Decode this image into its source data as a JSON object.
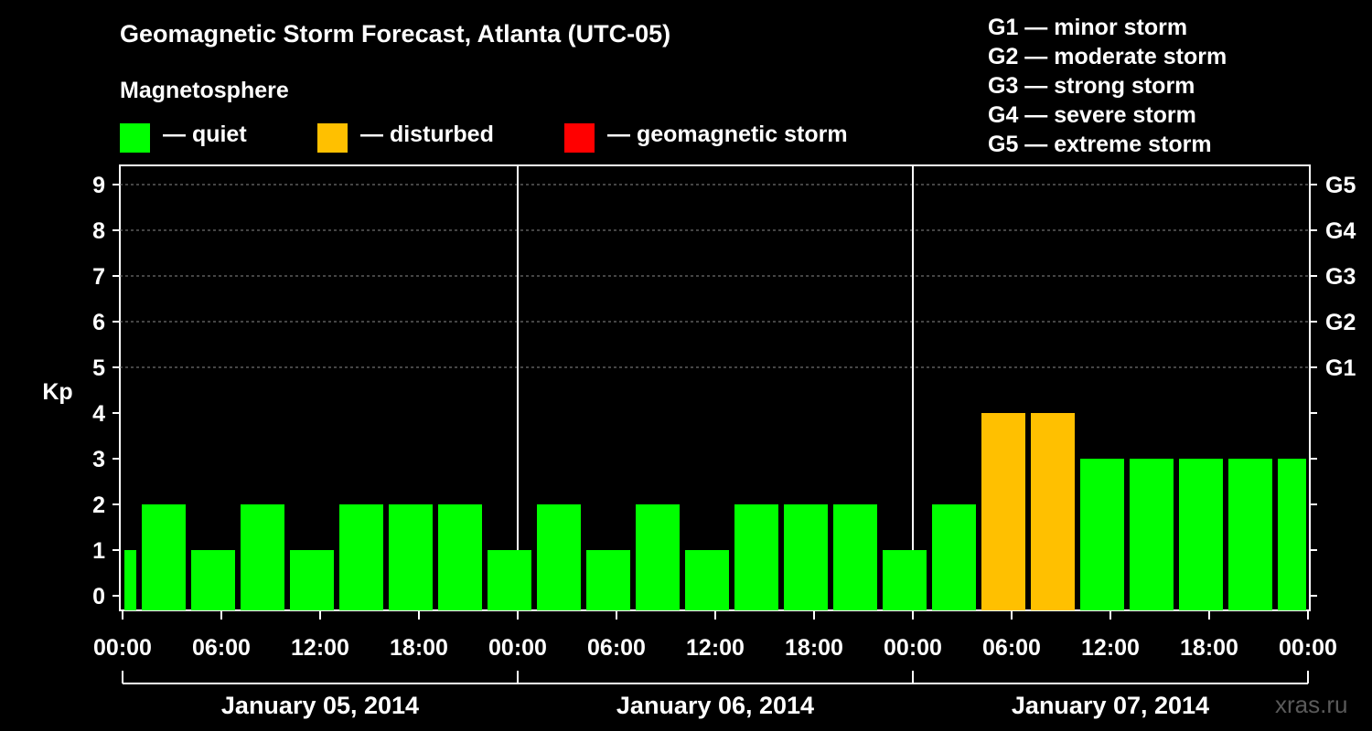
{
  "title": "Geomagnetic Storm Forecast, Atlanta (UTC-05)",
  "magnetosphere_label": "Magnetosphere",
  "legend": [
    {
      "color": "#00ff00",
      "label": "— quiet"
    },
    {
      "color": "#ffc000",
      "label": "— disturbed"
    },
    {
      "color": "#ff0000",
      "label": "— geomagnetic storm"
    }
  ],
  "g_scale": [
    "G1 — minor storm",
    "G2 — moderate storm",
    "G3 — strong storm",
    "G4 — severe storm",
    "G5 — extreme storm"
  ],
  "watermark": "xras.ru",
  "chart_data": {
    "type": "bar",
    "title": "Geomagnetic Storm Forecast, Atlanta (UTC-05)",
    "ylabel": "Kp",
    "ylim": [
      0,
      9
    ],
    "y_ticks": [
      "0",
      "1",
      "2",
      "3",
      "4",
      "5",
      "6",
      "7",
      "8",
      "9"
    ],
    "right_axis_ticks": [
      {
        "kp": 5,
        "label": "G1"
      },
      {
        "kp": 6,
        "label": "G2"
      },
      {
        "kp": 7,
        "label": "G3"
      },
      {
        "kp": 8,
        "label": "G4"
      },
      {
        "kp": 9,
        "label": "G5"
      }
    ],
    "x_tick_labels": [
      "00:00",
      "06:00",
      "12:00",
      "18:00",
      "00:00",
      "06:00",
      "12:00",
      "18:00",
      "00:00",
      "06:00",
      "12:00",
      "18:00",
      "00:00"
    ],
    "dates": [
      "January 05, 2014",
      "January 06, 2014",
      "January 07, 2014"
    ],
    "grid": true,
    "colors": {
      "quiet": "#00ff00",
      "disturbed": "#ffc000",
      "storm": "#ff0000"
    },
    "bars": [
      {
        "start": "2014-01-05 00:00",
        "end": "2014-01-05 01:00",
        "kp": 1,
        "status": "quiet"
      },
      {
        "start": "2014-01-05 01:00",
        "end": "2014-01-05 04:00",
        "kp": 2,
        "status": "quiet"
      },
      {
        "start": "2014-01-05 04:00",
        "end": "2014-01-05 07:00",
        "kp": 1,
        "status": "quiet"
      },
      {
        "start": "2014-01-05 07:00",
        "end": "2014-01-05 10:00",
        "kp": 2,
        "status": "quiet"
      },
      {
        "start": "2014-01-05 10:00",
        "end": "2014-01-05 13:00",
        "kp": 1,
        "status": "quiet"
      },
      {
        "start": "2014-01-05 13:00",
        "end": "2014-01-05 16:00",
        "kp": 2,
        "status": "quiet"
      },
      {
        "start": "2014-01-05 16:00",
        "end": "2014-01-05 19:00",
        "kp": 2,
        "status": "quiet"
      },
      {
        "start": "2014-01-05 19:00",
        "end": "2014-01-05 22:00",
        "kp": 2,
        "status": "quiet"
      },
      {
        "start": "2014-01-05 22:00",
        "end": "2014-01-06 01:00",
        "kp": 1,
        "status": "quiet"
      },
      {
        "start": "2014-01-06 01:00",
        "end": "2014-01-06 04:00",
        "kp": 2,
        "status": "quiet"
      },
      {
        "start": "2014-01-06 04:00",
        "end": "2014-01-06 07:00",
        "kp": 1,
        "status": "quiet"
      },
      {
        "start": "2014-01-06 07:00",
        "end": "2014-01-06 10:00",
        "kp": 2,
        "status": "quiet"
      },
      {
        "start": "2014-01-06 10:00",
        "end": "2014-01-06 13:00",
        "kp": 1,
        "status": "quiet"
      },
      {
        "start": "2014-01-06 13:00",
        "end": "2014-01-06 16:00",
        "kp": 2,
        "status": "quiet"
      },
      {
        "start": "2014-01-06 16:00",
        "end": "2014-01-06 19:00",
        "kp": 2,
        "status": "quiet"
      },
      {
        "start": "2014-01-06 19:00",
        "end": "2014-01-06 22:00",
        "kp": 2,
        "status": "quiet"
      },
      {
        "start": "2014-01-06 22:00",
        "end": "2014-01-07 01:00",
        "kp": 1,
        "status": "quiet"
      },
      {
        "start": "2014-01-07 01:00",
        "end": "2014-01-07 04:00",
        "kp": 2,
        "status": "quiet"
      },
      {
        "start": "2014-01-07 04:00",
        "end": "2014-01-07 07:00",
        "kp": 4,
        "status": "disturbed"
      },
      {
        "start": "2014-01-07 07:00",
        "end": "2014-01-07 10:00",
        "kp": 4,
        "status": "disturbed"
      },
      {
        "start": "2014-01-07 10:00",
        "end": "2014-01-07 13:00",
        "kp": 3,
        "status": "quiet"
      },
      {
        "start": "2014-01-07 13:00",
        "end": "2014-01-07 16:00",
        "kp": 3,
        "status": "quiet"
      },
      {
        "start": "2014-01-07 16:00",
        "end": "2014-01-07 19:00",
        "kp": 3,
        "status": "quiet"
      },
      {
        "start": "2014-01-07 19:00",
        "end": "2014-01-07 22:00",
        "kp": 3,
        "status": "quiet"
      },
      {
        "start": "2014-01-07 22:00",
        "end": "2014-01-08 00:00",
        "kp": 3,
        "status": "quiet"
      }
    ]
  }
}
